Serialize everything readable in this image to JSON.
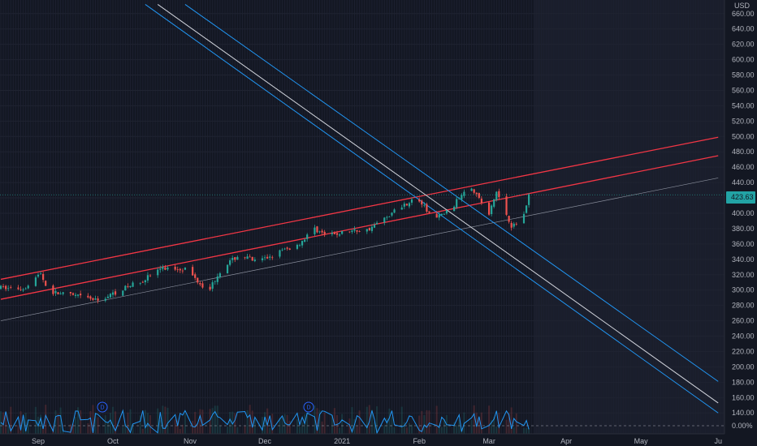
{
  "currency": "USD",
  "last_price_tag": "423.63",
  "indicator_value": "0.00%",
  "event_markers": [
    "D",
    "D"
  ],
  "colors": {
    "background": "#131722",
    "up_candle": "#26a69a",
    "down_candle": "#ef5350",
    "channel_red": "#f23645",
    "channel_blue": "#2196f3",
    "gray_line": "#d1d4dc",
    "indicator": "#2196f3"
  },
  "chart_data": {
    "type": "candlestick",
    "y_axis_ticks": [
      660,
      640,
      620,
      600,
      580,
      560,
      540,
      520,
      500,
      480,
      460,
      440,
      420,
      400,
      380,
      360,
      340,
      320,
      300,
      280,
      260,
      240,
      220,
      200,
      180,
      160,
      140
    ],
    "y_axis_labels": [
      "660.00",
      "640.00",
      "620.00",
      "600.00",
      "580.00",
      "560.00",
      "540.00",
      "520.00",
      "500.00",
      "480.00",
      "460.00",
      "440.00",
      "420.00",
      "400.00",
      "380.00",
      "360.00",
      "340.00",
      "320.00",
      "300.00",
      "280.00",
      "260.00",
      "240.00",
      "220.00",
      "200.00",
      "180.00",
      "160.00",
      "140.00"
    ],
    "ylim": [
      130,
      670
    ],
    "x_axis_labels": [
      "Sep",
      "Oct",
      "Nov",
      "Dec",
      "2021",
      "Feb",
      "Mar",
      "Apr",
      "May",
      "Ju"
    ],
    "x_axis_dates": [
      "2020-09-01",
      "2020-10-01",
      "2020-11-01",
      "2020-12-01",
      "2021-01-01",
      "2021-02-01",
      "2021-03-01",
      "2021-04-01",
      "2021-05-01",
      "2021-06-01"
    ],
    "price_path": [
      [
        "2020-08-17",
        303
      ],
      [
        "2020-08-26",
        302
      ],
      [
        "2020-09-02",
        322
      ],
      [
        "2020-09-05",
        298
      ],
      [
        "2020-09-20",
        290
      ],
      [
        "2020-09-25",
        286
      ],
      [
        "2020-10-04",
        300
      ],
      [
        "2020-10-13",
        313
      ],
      [
        "2020-10-20",
        328
      ],
      [
        "2020-10-30",
        328
      ],
      [
        "2020-11-06",
        306
      ],
      [
        "2020-11-09",
        303
      ],
      [
        "2020-11-14",
        330
      ],
      [
        "2020-11-21",
        346
      ],
      [
        "2020-11-28",
        336
      ],
      [
        "2020-12-07",
        350
      ],
      [
        "2020-12-14",
        358
      ],
      [
        "2020-12-21",
        380
      ],
      [
        "2020-12-26",
        370
      ],
      [
        "2021-01-04",
        377
      ],
      [
        "2021-01-11",
        378
      ],
      [
        "2021-01-18",
        393
      ],
      [
        "2021-01-24",
        408
      ],
      [
        "2021-01-31",
        420
      ],
      [
        "2021-02-07",
        392
      ],
      [
        "2021-02-14",
        406
      ],
      [
        "2021-02-21",
        440
      ],
      [
        "2021-03-01",
        398
      ],
      [
        "2021-03-04",
        428
      ],
      [
        "2021-03-10",
        384
      ],
      [
        "2021-03-14",
        388
      ],
      [
        "2021-03-17",
        424
      ]
    ],
    "lines": [
      {
        "name": "red-channel-upper",
        "points": [
          [
            "2020-08-17",
            314
          ],
          [
            "2021-06-01",
            499
          ]
        ]
      },
      {
        "name": "red-channel-lower",
        "points": [
          [
            "2020-08-17",
            288
          ],
          [
            "2021-06-01",
            475
          ]
        ]
      },
      {
        "name": "gray-trendline",
        "points": [
          [
            "2020-08-17",
            260
          ],
          [
            "2021-06-01",
            446
          ]
        ]
      },
      {
        "name": "blue-channel-upper",
        "points": [
          [
            "2020-10-30",
            672
          ],
          [
            "2021-06-01",
            181
          ]
        ]
      },
      {
        "name": "gray-channel-middle",
        "points": [
          [
            "2020-10-19",
            672
          ],
          [
            "2021-06-01",
            153
          ]
        ]
      },
      {
        "name": "blue-channel-lower",
        "points": [
          [
            "2020-10-14",
            672
          ],
          [
            "2021-06-01",
            140
          ]
        ]
      }
    ]
  }
}
